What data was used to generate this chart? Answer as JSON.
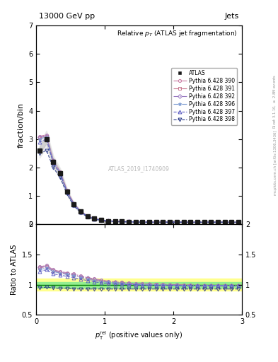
{
  "title_top": "13000 GeV pp",
  "title_right": "Jets",
  "plot_title": "Relative $p_{T}$ (ATLAS jet fragmentation)",
  "ylabel_main": "fraction/bin",
  "ylabel_ratio": "Ratio to ATLAS",
  "watermark": "ATLAS_2019_I1740909",
  "xlim": [
    0,
    3
  ],
  "ylim_main": [
    0,
    7
  ],
  "ylim_ratio": [
    0.5,
    2.0
  ],
  "xticks": [
    0,
    1,
    2,
    3
  ],
  "yticks_main": [
    0,
    1,
    2,
    3,
    4,
    5,
    6,
    7
  ],
  "yticks_ratio": [
    0.5,
    1.0,
    1.5,
    2.0
  ],
  "x_data": [
    0.05,
    0.15,
    0.25,
    0.35,
    0.45,
    0.55,
    0.65,
    0.75,
    0.85,
    0.95,
    1.05,
    1.15,
    1.25,
    1.35,
    1.45,
    1.55,
    1.65,
    1.75,
    1.85,
    1.95,
    2.05,
    2.15,
    2.25,
    2.35,
    2.45,
    2.55,
    2.65,
    2.75,
    2.85,
    2.95
  ],
  "atlas_y": [
    2.6,
    3.0,
    2.2,
    1.8,
    1.15,
    0.7,
    0.45,
    0.28,
    0.2,
    0.15,
    0.12,
    0.11,
    0.1,
    0.09,
    0.09,
    0.08,
    0.08,
    0.08,
    0.08,
    0.08,
    0.08,
    0.08,
    0.08,
    0.08,
    0.08,
    0.08,
    0.08,
    0.08,
    0.08,
    0.08
  ],
  "series": [
    {
      "label": "Pythia 6.428 390",
      "color": "#c878a0",
      "marker": "o",
      "linestyle": "-.",
      "y_main": [
        3.1,
        3.15,
        2.25,
        1.85,
        1.2,
        0.73,
        0.47,
        0.3,
        0.21,
        0.16,
        0.13,
        0.12,
        0.11,
        0.1,
        0.09,
        0.09,
        0.09,
        0.09,
        0.09,
        0.08,
        0.08,
        0.08,
        0.08,
        0.08,
        0.08,
        0.08,
        0.08,
        0.08,
        0.08,
        0.08
      ],
      "y_ratio": [
        1.3,
        1.32,
        1.25,
        1.22,
        1.2,
        1.18,
        1.15,
        1.12,
        1.1,
        1.08,
        1.06,
        1.05,
        1.04,
        1.03,
        1.02,
        1.02,
        1.01,
        1.01,
        1.01,
        1.0,
        1.0,
        1.0,
        1.0,
        0.99,
        0.99,
        0.99,
        0.99,
        0.99,
        0.99,
        0.99
      ]
    },
    {
      "label": "Pythia 6.428 391",
      "color": "#c87890",
      "marker": "s",
      "linestyle": "-.",
      "y_main": [
        3.05,
        3.1,
        2.22,
        1.82,
        1.18,
        0.72,
        0.46,
        0.29,
        0.2,
        0.16,
        0.13,
        0.12,
        0.11,
        0.1,
        0.09,
        0.09,
        0.09,
        0.09,
        0.09,
        0.08,
        0.08,
        0.08,
        0.08,
        0.08,
        0.08,
        0.08,
        0.08,
        0.08,
        0.08,
        0.08
      ],
      "y_ratio": [
        1.28,
        1.3,
        1.23,
        1.2,
        1.18,
        1.16,
        1.13,
        1.1,
        1.08,
        1.06,
        1.05,
        1.04,
        1.03,
        1.02,
        1.01,
        1.01,
        1.01,
        1.01,
        1.0,
        1.0,
        1.0,
        0.99,
        0.99,
        0.99,
        0.99,
        0.99,
        0.99,
        0.99,
        0.99,
        0.99
      ]
    },
    {
      "label": "Pythia 6.428 392",
      "color": "#9878c0",
      "marker": "D",
      "linestyle": "-.",
      "y_main": [
        3.08,
        3.12,
        2.24,
        1.83,
        1.19,
        0.72,
        0.46,
        0.29,
        0.21,
        0.16,
        0.13,
        0.12,
        0.11,
        0.1,
        0.09,
        0.09,
        0.09,
        0.09,
        0.08,
        0.08,
        0.08,
        0.08,
        0.08,
        0.08,
        0.08,
        0.08,
        0.08,
        0.08,
        0.08,
        0.08
      ],
      "y_ratio": [
        1.29,
        1.31,
        1.24,
        1.21,
        1.19,
        1.17,
        1.14,
        1.11,
        1.09,
        1.07,
        1.05,
        1.04,
        1.03,
        1.02,
        1.01,
        1.01,
        1.01,
        1.0,
        1.0,
        1.0,
        1.0,
        0.99,
        0.99,
        0.99,
        0.99,
        0.99,
        0.99,
        0.99,
        0.99,
        0.99
      ]
    },
    {
      "label": "Pythia 6.428 396",
      "color": "#7898d0",
      "marker": "*",
      "linestyle": "-.",
      "y_main": [
        3.0,
        3.08,
        2.2,
        1.8,
        1.15,
        0.7,
        0.45,
        0.28,
        0.2,
        0.15,
        0.12,
        0.11,
        0.1,
        0.09,
        0.09,
        0.08,
        0.08,
        0.08,
        0.08,
        0.08,
        0.08,
        0.08,
        0.08,
        0.08,
        0.08,
        0.08,
        0.08,
        0.08,
        0.08,
        0.08
      ],
      "y_ratio": [
        1.25,
        1.28,
        1.22,
        1.19,
        1.17,
        1.15,
        1.12,
        1.09,
        1.07,
        1.05,
        1.04,
        1.03,
        1.02,
        1.01,
        1.01,
        1.0,
        1.0,
        1.0,
        1.0,
        0.99,
        0.99,
        0.99,
        0.99,
        0.99,
        0.99,
        0.99,
        0.99,
        0.99,
        0.99,
        0.98
      ]
    },
    {
      "label": "Pythia 6.428 397",
      "color": "#5858c0",
      "marker": "^",
      "linestyle": "--",
      "y_main": [
        2.9,
        3.0,
        2.15,
        1.78,
        1.14,
        0.69,
        0.44,
        0.28,
        0.19,
        0.15,
        0.12,
        0.11,
        0.1,
        0.09,
        0.09,
        0.08,
        0.08,
        0.08,
        0.08,
        0.08,
        0.08,
        0.08,
        0.08,
        0.08,
        0.08,
        0.08,
        0.08,
        0.08,
        0.08,
        0.08
      ],
      "y_ratio": [
        1.22,
        1.25,
        1.18,
        1.16,
        1.14,
        1.12,
        1.09,
        1.07,
        1.05,
        1.03,
        1.02,
        1.01,
        1.01,
        1.0,
        1.0,
        0.99,
        0.99,
        0.99,
        0.99,
        0.99,
        0.99,
        0.98,
        0.98,
        0.98,
        0.98,
        0.98,
        0.98,
        0.98,
        0.98,
        0.98
      ]
    },
    {
      "label": "Pythia 6.428 398",
      "color": "#283888",
      "marker": "v",
      "linestyle": "--",
      "y_main": [
        2.5,
        2.6,
        2.0,
        1.65,
        1.07,
        0.65,
        0.42,
        0.26,
        0.18,
        0.14,
        0.11,
        0.1,
        0.09,
        0.09,
        0.08,
        0.08,
        0.08,
        0.08,
        0.08,
        0.08,
        0.08,
        0.08,
        0.08,
        0.08,
        0.08,
        0.08,
        0.08,
        0.08,
        0.08,
        0.08
      ],
      "y_ratio": [
        0.95,
        0.96,
        0.95,
        0.94,
        0.94,
        0.93,
        0.93,
        0.93,
        0.93,
        0.93,
        0.93,
        0.93,
        0.93,
        0.93,
        0.93,
        0.93,
        0.93,
        0.93,
        0.93,
        0.93,
        0.93,
        0.93,
        0.93,
        0.93,
        0.93,
        0.93,
        0.93,
        0.93,
        0.93,
        0.93
      ]
    }
  ],
  "atlas_color": "#1a1a1a",
  "band_color_green": "#90ee90",
  "band_color_yellow": "#ffff80",
  "band_inner": 0.05,
  "band_outer": 0.1
}
